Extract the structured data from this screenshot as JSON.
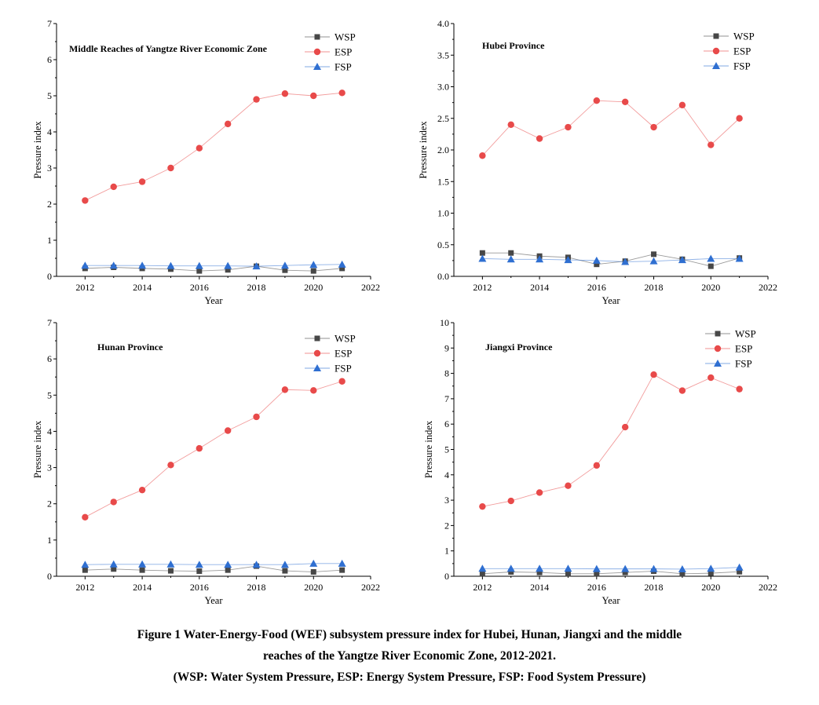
{
  "colors": {
    "WSP": "#474747",
    "ESP": "#e84a4a",
    "FSP": "#2f6fd1"
  },
  "markers": {
    "WSP": "square",
    "ESP": "circle",
    "FSP": "triangle"
  },
  "caption": {
    "line1": "Figure 1  Water-Energy-Food (WEF) subsystem pressure index for Hubei, Hunan, Jiangxi and the middle",
    "line2": "reaches of the Yangtze River Economic Zone, 2012-2021.",
    "line3": "(WSP: Water System Pressure, ESP: Energy System Pressure, FSP: Food System Pressure)"
  },
  "chart_data": [
    {
      "type": "line",
      "title": "Middle Reaches of Yangtze River Economic Zone",
      "xlabel": "Year",
      "ylabel": "Pressure index",
      "xlim": [
        2011,
        2022
      ],
      "ylim": [
        0,
        7
      ],
      "xticks": [
        2012,
        2014,
        2016,
        2018,
        2020,
        2022
      ],
      "yticks": [
        0,
        1,
        2,
        3,
        4,
        5,
        6,
        7
      ],
      "ytick_labels": [
        "0",
        "1",
        "2",
        "3",
        "4",
        "5",
        "6",
        "7"
      ],
      "grid": false,
      "legend": "top-right",
      "x": [
        2012,
        2013,
        2014,
        2015,
        2016,
        2017,
        2018,
        2019,
        2020,
        2021
      ],
      "series": [
        {
          "name": "WSP",
          "values": [
            0.22,
            0.25,
            0.22,
            0.2,
            0.15,
            0.18,
            0.28,
            0.17,
            0.15,
            0.22
          ]
        },
        {
          "name": "ESP",
          "values": [
            2.1,
            2.48,
            2.62,
            3.0,
            3.55,
            4.22,
            4.9,
            5.06,
            5.0,
            5.08
          ]
        },
        {
          "name": "FSP",
          "values": [
            0.3,
            0.3,
            0.3,
            0.29,
            0.29,
            0.29,
            0.28,
            0.3,
            0.32,
            0.33
          ]
        }
      ]
    },
    {
      "type": "line",
      "title": "Hubei Province",
      "xlabel": "Year",
      "ylabel": "Pressure index",
      "xlim": [
        2011,
        2022
      ],
      "ylim": [
        0,
        4
      ],
      "xticks": [
        2012,
        2014,
        2016,
        2018,
        2020,
        2022
      ],
      "yticks": [
        0,
        0.5,
        1,
        1.5,
        2,
        2.5,
        3,
        3.5,
        4
      ],
      "ytick_labels": [
        "0.0",
        "0.5",
        "1.0",
        "1.5",
        "2.0",
        "2.5",
        "3.0",
        "3.5",
        "4.0"
      ],
      "grid": false,
      "legend": "top-right",
      "x": [
        2012,
        2013,
        2014,
        2015,
        2016,
        2017,
        2018,
        2019,
        2020,
        2021
      ],
      "series": [
        {
          "name": "WSP",
          "values": [
            0.37,
            0.37,
            0.32,
            0.3,
            0.19,
            0.24,
            0.35,
            0.27,
            0.16,
            0.29
          ]
        },
        {
          "name": "ESP",
          "values": [
            1.91,
            2.4,
            2.18,
            2.36,
            2.78,
            2.76,
            2.36,
            2.71,
            2.08,
            2.5
          ]
        },
        {
          "name": "FSP",
          "values": [
            0.28,
            0.27,
            0.27,
            0.26,
            0.25,
            0.23,
            0.24,
            0.26,
            0.28,
            0.28
          ]
        }
      ]
    },
    {
      "type": "line",
      "title": "Hunan Province",
      "xlabel": "Year",
      "ylabel": "Pressure index",
      "xlim": [
        2011,
        2022
      ],
      "ylim": [
        0,
        7
      ],
      "xticks": [
        2012,
        2014,
        2016,
        2018,
        2020,
        2022
      ],
      "yticks": [
        0,
        1,
        2,
        3,
        4,
        5,
        6,
        7
      ],
      "ytick_labels": [
        "0",
        "1",
        "2",
        "3",
        "4",
        "5",
        "6",
        "7"
      ],
      "grid": false,
      "legend": "top-right",
      "x": [
        2012,
        2013,
        2014,
        2015,
        2016,
        2017,
        2018,
        2019,
        2020,
        2021
      ],
      "series": [
        {
          "name": "WSP",
          "values": [
            0.17,
            0.2,
            0.17,
            0.15,
            0.14,
            0.17,
            0.28,
            0.15,
            0.12,
            0.17
          ]
        },
        {
          "name": "ESP",
          "values": [
            1.63,
            2.05,
            2.38,
            3.07,
            3.53,
            4.02,
            4.4,
            5.15,
            5.13,
            5.38
          ]
        },
        {
          "name": "FSP",
          "values": [
            0.32,
            0.33,
            0.33,
            0.33,
            0.32,
            0.32,
            0.32,
            0.32,
            0.35,
            0.35
          ]
        }
      ]
    },
    {
      "type": "line",
      "title": "Jiangxi Province",
      "xlabel": "Year",
      "ylabel": "Pressure index",
      "xlim": [
        2011,
        2022
      ],
      "ylim": [
        0,
        10
      ],
      "xticks": [
        2012,
        2014,
        2016,
        2018,
        2020,
        2022
      ],
      "yticks": [
        0,
        1,
        2,
        3,
        4,
        5,
        6,
        7,
        8,
        9,
        10
      ],
      "ytick_labels": [
        "0",
        "1",
        "2",
        "3",
        "4",
        "5",
        "6",
        "7",
        "8",
        "9",
        "10"
      ],
      "grid": false,
      "legend": "top-right",
      "x": [
        2012,
        2013,
        2014,
        2015,
        2016,
        2017,
        2018,
        2019,
        2020,
        2021
      ],
      "series": [
        {
          "name": "WSP",
          "values": [
            0.1,
            0.17,
            0.15,
            0.1,
            0.1,
            0.15,
            0.2,
            0.1,
            0.12,
            0.18
          ]
        },
        {
          "name": "ESP",
          "values": [
            2.75,
            2.97,
            3.3,
            3.57,
            4.37,
            5.88,
            7.95,
            7.32,
            7.83,
            7.38
          ]
        },
        {
          "name": "FSP",
          "values": [
            0.3,
            0.3,
            0.3,
            0.3,
            0.29,
            0.29,
            0.29,
            0.28,
            0.3,
            0.35
          ]
        }
      ]
    }
  ]
}
